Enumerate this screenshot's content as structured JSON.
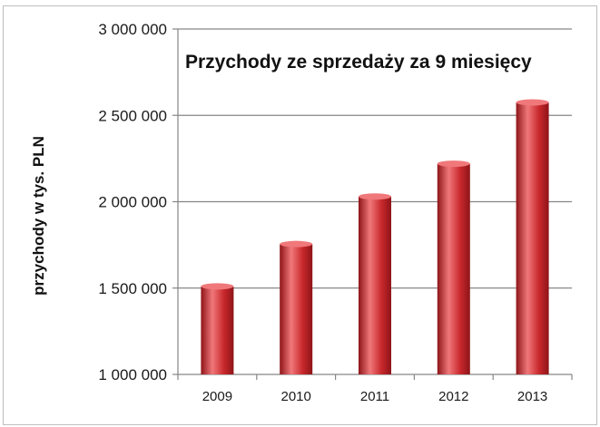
{
  "chart_data": {
    "type": "bar",
    "title": "Przychody ze sprzedaży za 9 miesięcy",
    "xlabel": "",
    "ylabel": "przychody w tys. PLN",
    "categories": [
      "2009",
      "2010",
      "2011",
      "2012",
      "2013"
    ],
    "values": [
      1510000,
      1755000,
      2030000,
      2220000,
      2575000
    ],
    "ylim": [
      1000000,
      3000000
    ],
    "yticks": [
      1000000,
      1500000,
      2000000,
      2500000,
      3000000
    ],
    "ytick_labels": [
      "1 000 000",
      "1 500 000",
      "2 000 000",
      "2 500 000",
      "3 000 000"
    ],
    "grid": true,
    "legend": "none",
    "bar_color": "#c8282c",
    "bar_highlight_color": "#f0787a",
    "bar_dark_color": "#8e1418",
    "gridline_color": "#868686"
  }
}
